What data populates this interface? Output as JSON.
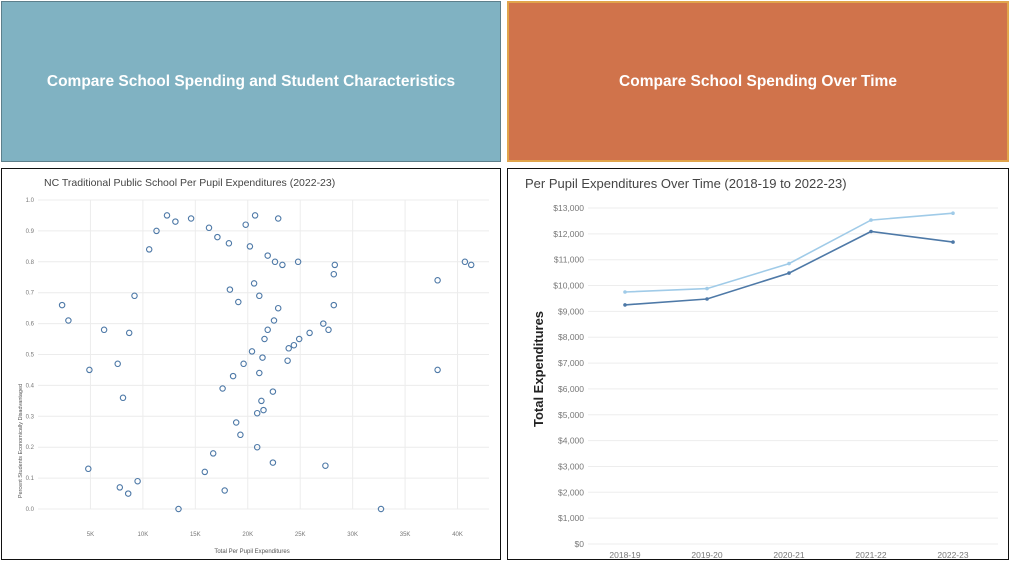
{
  "tiles": {
    "left_label": "Compare School Spending and Student Characteristics",
    "right_label": "Compare School Spending Over Time",
    "left_color": "#80b2c2",
    "right_color": "#d0734b"
  },
  "chart_data": [
    {
      "type": "scatter",
      "title": "NC Traditional Public School Per Pupil Expenditures (2022-23)",
      "xlabel": "Total Per Pupil Expenditures",
      "ylabel": "Percent Students Economically Disadvantaged",
      "xlim": [
        0,
        43000
      ],
      "ylim": [
        0,
        1.0
      ],
      "x_ticks": [
        5000,
        10000,
        15000,
        20000,
        25000,
        30000,
        35000,
        40000
      ],
      "x_tick_labels": [
        "5K",
        "10K",
        "15K",
        "20K",
        "25K",
        "30K",
        "35K",
        "40K"
      ],
      "y_ticks": [
        0.0,
        0.1,
        0.2,
        0.3,
        0.4,
        0.5,
        0.6,
        0.7,
        0.8,
        0.9,
        1.0
      ],
      "y_tick_labels": [
        "0.0",
        "0.1",
        "0.2",
        "0.3",
        "0.4",
        "0.5",
        "0.6",
        "0.7",
        "0.8",
        "0.9",
        "1.0"
      ],
      "grid": true,
      "marker_color": "#4e79a7",
      "points": [
        [
          2300,
          0.66
        ],
        [
          2900,
          0.61
        ],
        [
          4900,
          0.45
        ],
        [
          4800,
          0.13
        ],
        [
          6300,
          0.58
        ],
        [
          19800,
          0.92
        ],
        [
          20700,
          0.95
        ],
        [
          22900,
          0.94
        ],
        [
          24800,
          0.8
        ],
        [
          28300,
          0.79
        ],
        [
          28200,
          0.76
        ],
        [
          28200,
          0.66
        ],
        [
          27700,
          0.58
        ],
        [
          27200,
          0.6
        ],
        [
          25900,
          0.57
        ],
        [
          24900,
          0.55
        ],
        [
          24400,
          0.53
        ],
        [
          23900,
          0.52
        ],
        [
          22900,
          0.65
        ],
        [
          22500,
          0.61
        ],
        [
          21900,
          0.58
        ],
        [
          21600,
          0.55
        ],
        [
          21400,
          0.49
        ],
        [
          21100,
          0.44
        ],
        [
          22400,
          0.38
        ],
        [
          21300,
          0.35
        ],
        [
          20900,
          0.31
        ],
        [
          21500,
          0.32
        ],
        [
          20900,
          0.2
        ],
        [
          22400,
          0.15
        ],
        [
          27400,
          0.14
        ],
        [
          17800,
          0.06
        ],
        [
          13400,
          0.0
        ],
        [
          32700,
          0.0
        ],
        [
          38100,
          0.45
        ],
        [
          38100,
          0.74
        ],
        [
          40700,
          0.8
        ],
        [
          41300,
          0.79
        ],
        [
          18900,
          0.28
        ],
        [
          19300,
          0.24
        ],
        [
          20200,
          0.85
        ],
        [
          21900,
          0.82
        ],
        [
          22600,
          0.8
        ],
        [
          23300,
          0.79
        ],
        [
          18600,
          0.43
        ],
        [
          19600,
          0.47
        ],
        [
          20400,
          0.51
        ],
        [
          17600,
          0.39
        ],
        [
          16700,
          0.18
        ],
        [
          15900,
          0.12
        ],
        [
          18300,
          0.71
        ],
        [
          19100,
          0.67
        ],
        [
          20600,
          0.73
        ],
        [
          21100,
          0.69
        ],
        [
          23800,
          0.48
        ],
        [
          9200,
          0.69
        ],
        [
          8700,
          0.57
        ],
        [
          7600,
          0.47
        ],
        [
          8100,
          0.36
        ],
        [
          7800,
          0.07
        ],
        [
          8600,
          0.05
        ],
        [
          9500,
          0.09
        ],
        [
          10600,
          0.84
        ],
        [
          11300,
          0.9
        ],
        [
          12300,
          0.95
        ],
        [
          13100,
          0.93
        ],
        [
          14600,
          0.94
        ],
        [
          16300,
          0.91
        ],
        [
          17100,
          0.88
        ],
        [
          18200,
          0.86
        ]
      ]
    },
    {
      "type": "line",
      "title": "Per Pupil Expenditures Over Time (2018-19 to 2022-23)",
      "categories": [
        "2018-19",
        "2019-20",
        "2020-21",
        "2021-22",
        "2022-23"
      ],
      "ylabel": "Total Expenditures",
      "ylim": [
        0,
        13000
      ],
      "y_ticks": [
        0,
        1000,
        2000,
        3000,
        4000,
        5000,
        6000,
        7000,
        8000,
        9000,
        10000,
        11000,
        12000,
        13000
      ],
      "y_tick_labels": [
        "$0",
        "$1,000",
        "$2,000",
        "$3,000",
        "$4,000",
        "$5,000",
        "$6,000",
        "$7,000",
        "$8,000",
        "$9,000",
        "$10,000",
        "$11,000",
        "$12,000",
        "$13,000"
      ],
      "grid": true,
      "series": [
        {
          "values": [
            9750,
            9880,
            10850,
            12530,
            12800
          ],
          "color": "#a0cbe8"
        },
        {
          "values": [
            9250,
            9480,
            10480,
            12090,
            11680
          ],
          "color": "#4e79a7"
        }
      ]
    }
  ]
}
